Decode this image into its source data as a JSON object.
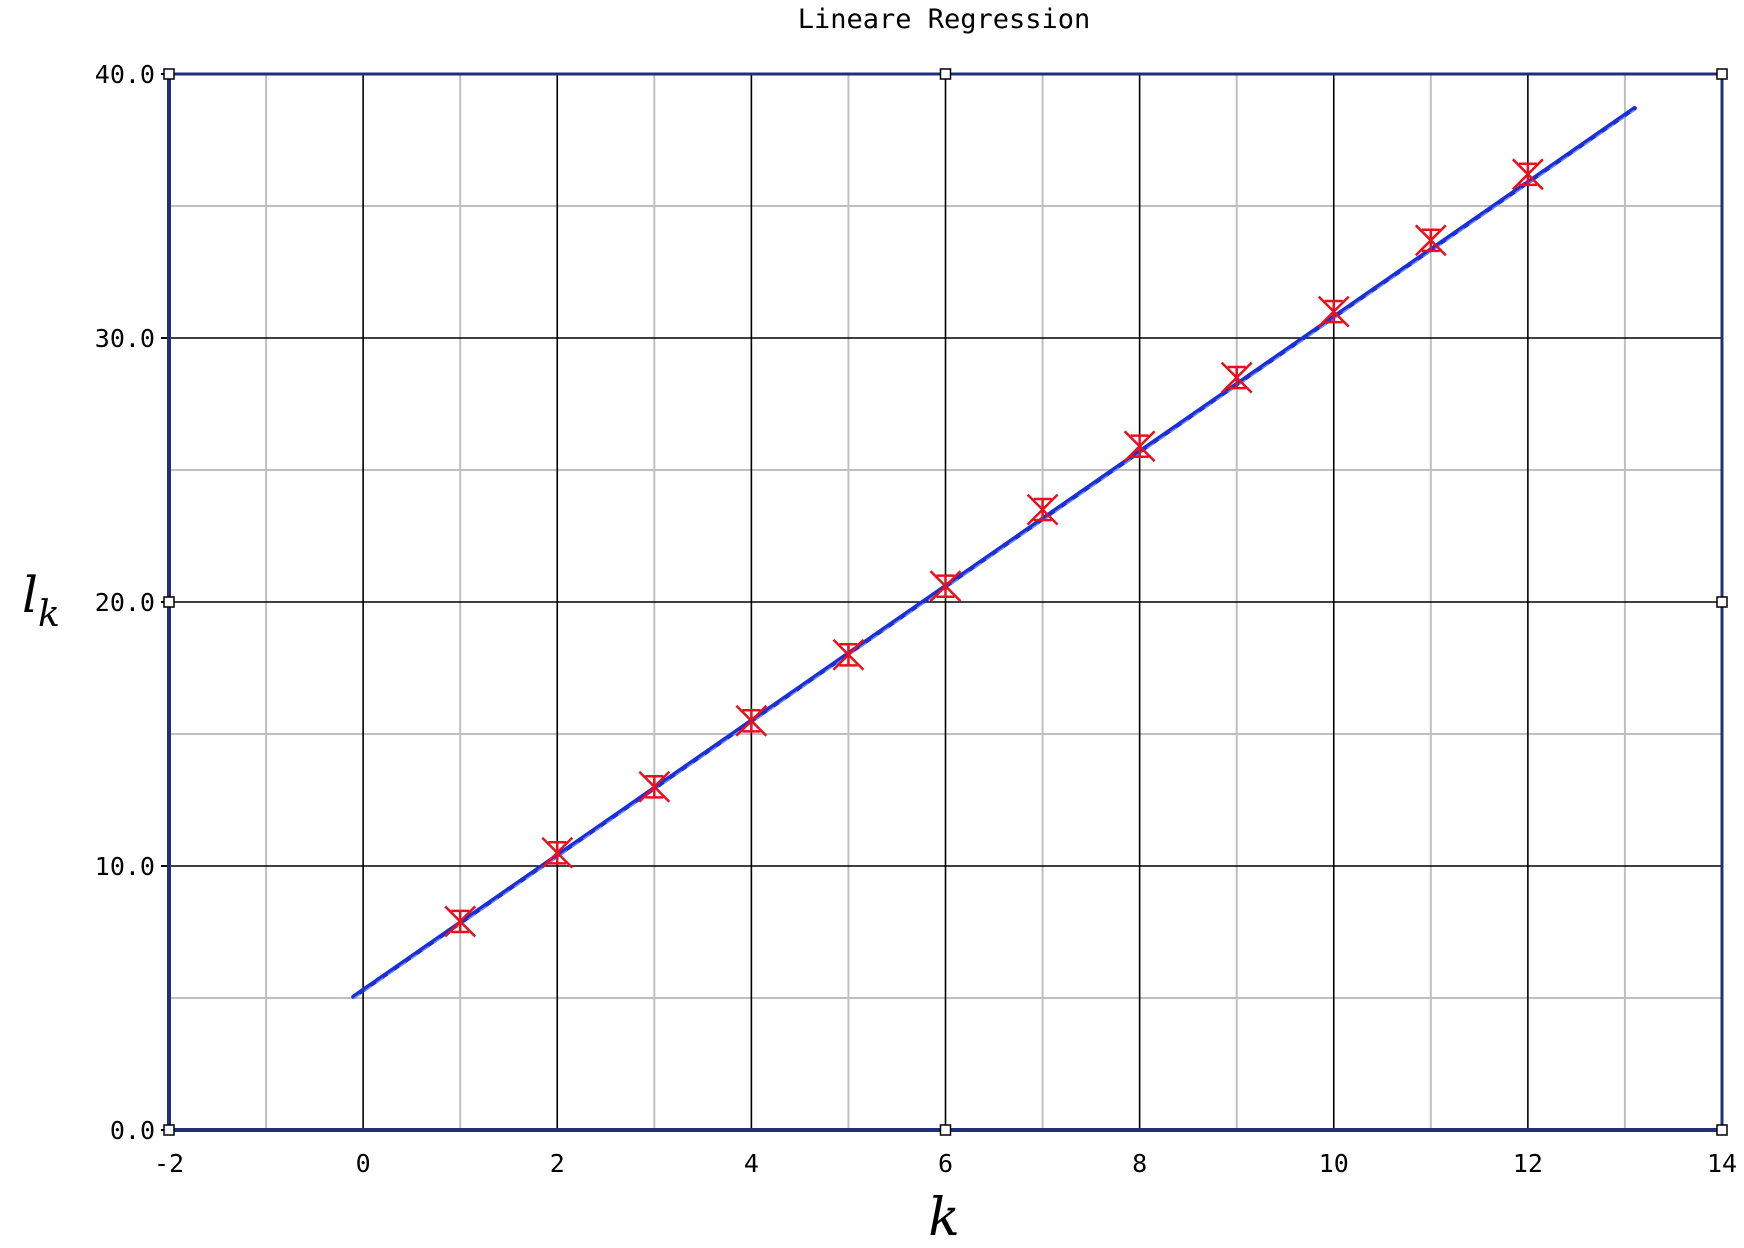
{
  "chart_data": {
    "type": "scatter",
    "title": "Lineare Regression",
    "xlabel": "k",
    "ylabel": {
      "main": "l",
      "sub": "k"
    },
    "xlim": [
      -2,
      14
    ],
    "ylim": [
      0,
      40
    ],
    "x_ticks": [
      -2,
      0,
      2,
      4,
      6,
      8,
      10,
      12,
      14
    ],
    "y_ticks": [
      0,
      10,
      20,
      30,
      40
    ],
    "x_tick_labels": [
      "-2",
      "0",
      "2",
      "4",
      "6",
      "8",
      "10",
      "12",
      "14"
    ],
    "y_tick_labels": [
      "0.0",
      "10.0",
      "20.0",
      "30.0",
      "40.0"
    ],
    "x_minor_step": 1,
    "y_minor_step": 5,
    "grid": true,
    "series": [
      {
        "kind": "points",
        "marker": "x-with-error-bars",
        "color": "#e8101c",
        "x": [
          1,
          2,
          3,
          4,
          5,
          6,
          7,
          8,
          9,
          10,
          11,
          12
        ],
        "y": [
          7.9,
          10.5,
          13.0,
          15.5,
          18.0,
          20.6,
          23.5,
          25.9,
          28.5,
          31.0,
          33.7,
          36.2
        ],
        "y_error": [
          0.4,
          0.4,
          0.4,
          0.4,
          0.4,
          0.4,
          0.4,
          0.4,
          0.4,
          0.4,
          0.4,
          0.4
        ]
      },
      {
        "kind": "fit-line",
        "color": "#1a2fd6",
        "x_range": [
          -0.1,
          13.1
        ],
        "slope": 2.55,
        "intercept": 5.3
      }
    ]
  },
  "colors": {
    "frame": "#1f2f7a",
    "major_grid": "#000000",
    "minor_grid": "#c0c0c0",
    "points": "#e8101c",
    "fit_line": "#1a2fd6"
  }
}
